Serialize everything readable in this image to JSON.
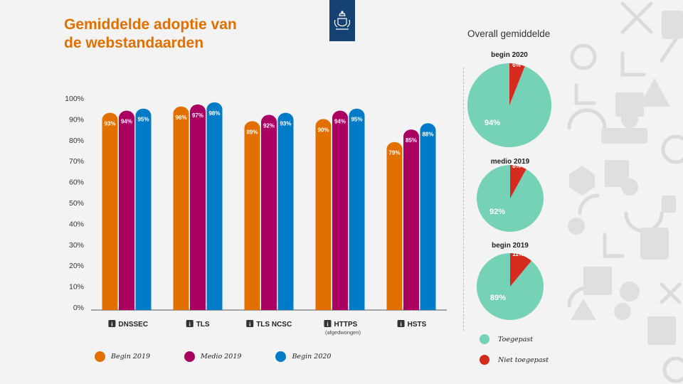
{
  "title_line1": "Gemiddelde adoptie van",
  "title_line2": "de webstandaarden",
  "colors": {
    "begin2019": "#e17000",
    "medio2019": "#a90061",
    "begin2020": "#007bc7",
    "toegepast": "#76d2b6",
    "niet_toegepast": "#d52b1e"
  },
  "legend": {
    "begin2019": "Begin 2019",
    "medio2019": "Medio 2019",
    "begin2020": "Begin 2020"
  },
  "pie_section_title": "Overall gemiddelde",
  "pie_legend": {
    "toegepast": "Toegepast",
    "niet_toegepast": "Niet toegepast"
  },
  "chart_data": [
    {
      "type": "bar",
      "categories": [
        "DNSSEC",
        "TLS",
        "TLS NCSC",
        "HTTPS",
        "HSTS"
      ],
      "category_sublabels": [
        "",
        "",
        "",
        "(afgedwongen)",
        ""
      ],
      "y_ticks": [
        "0%",
        "10%",
        "20%",
        "30%",
        "40%",
        "50%",
        "60%",
        "70%",
        "80%",
        "90%",
        "100%"
      ],
      "ylim": [
        0,
        100
      ],
      "series": [
        {
          "name": "Begin 2019",
          "values": [
            93,
            96,
            89,
            90,
            79
          ],
          "labels": [
            "93%",
            "96%",
            "89%",
            "90%",
            "79%"
          ]
        },
        {
          "name": "Medio 2019",
          "values": [
            94,
            97,
            92,
            94,
            85
          ],
          "labels": [
            "94%",
            "97%",
            "92%",
            "94%",
            "85%"
          ]
        },
        {
          "name": "Begin 2020",
          "values": [
            95,
            98,
            93,
            95,
            88
          ],
          "labels": [
            "95%",
            "98%",
            "93%",
            "95%",
            "88%"
          ]
        }
      ]
    },
    {
      "type": "pie",
      "title": "begin 2020",
      "values": [
        94,
        6
      ],
      "labels": [
        "94%",
        "6%"
      ],
      "slice_names": [
        "Toegepast",
        "Niet toegepast"
      ]
    },
    {
      "type": "pie",
      "title": "medio 2019",
      "values": [
        92,
        8
      ],
      "labels": [
        "92%",
        "8%"
      ],
      "slice_names": [
        "Toegepast",
        "Niet toegepast"
      ]
    },
    {
      "type": "pie",
      "title": "begin 2019",
      "values": [
        89,
        11
      ],
      "labels": [
        "89%",
        "11%"
      ],
      "slice_names": [
        "Toegepast",
        "Niet toegepast"
      ]
    }
  ]
}
